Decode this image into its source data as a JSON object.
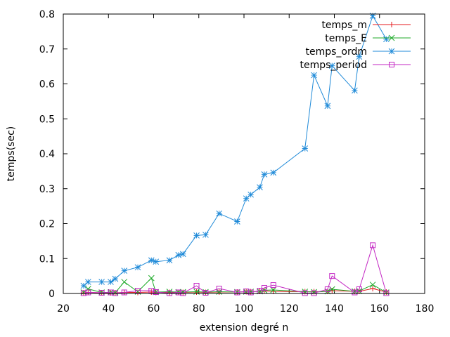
{
  "chart_data": {
    "type": "line",
    "title": "",
    "xlabel": "extension degré n",
    "ylabel": "temps(sec)",
    "xlim": [
      20,
      180
    ],
    "ylim": [
      0,
      0.8
    ],
    "xticks": [
      20,
      40,
      60,
      80,
      100,
      120,
      140,
      160,
      180
    ],
    "yticks": [
      0,
      0.1,
      0.2,
      0.3,
      0.4,
      0.5,
      0.6,
      0.7,
      0.8
    ],
    "xtick_labels": [
      "20",
      "40",
      "60",
      "80",
      "100",
      "120",
      "140",
      "160",
      "180"
    ],
    "ytick_labels": [
      "0",
      "0.1",
      "0.2",
      "0.3",
      "0.4",
      "0.5",
      "0.6",
      "0.7",
      "0.8"
    ],
    "grid": false,
    "legend_position": "top-right",
    "x": [
      29,
      31,
      37,
      41,
      43,
      47,
      53,
      59,
      61,
      67,
      71,
      73,
      79,
      83,
      89,
      97,
      101,
      103,
      107,
      109,
      113,
      127,
      131,
      137,
      139,
      149,
      151,
      157,
      163
    ],
    "series": [
      {
        "name": "temps_m",
        "color": "#e41a1c",
        "marker": "plus",
        "values": [
          0.002,
          0.003,
          0.002,
          0.002,
          0.002,
          0.003,
          0.003,
          0.004,
          0.003,
          0.003,
          0.003,
          0.003,
          0.004,
          0.003,
          0.004,
          0.004,
          0.005,
          0.005,
          0.006,
          0.007,
          0.006,
          0.005,
          0.005,
          0.006,
          0.008,
          0.006,
          0.006,
          0.014,
          0.004
        ]
      },
      {
        "name": "temps_E",
        "color": "#1faa2a",
        "marker": "cross",
        "values": [
          0.003,
          0.013,
          0.003,
          0.003,
          0.002,
          0.033,
          0.005,
          0.044,
          0.004,
          0.005,
          0.004,
          0.004,
          0.005,
          0.004,
          0.005,
          0.004,
          0.005,
          0.005,
          0.006,
          0.009,
          0.01,
          0.005,
          0.004,
          0.006,
          0.012,
          0.006,
          0.007,
          0.025,
          0.003
        ]
      },
      {
        "name": "temps_ordm",
        "color": "#1f8ad8",
        "marker": "star",
        "values": [
          0.022,
          0.033,
          0.033,
          0.033,
          0.042,
          0.065,
          0.075,
          0.095,
          0.091,
          0.095,
          0.11,
          0.113,
          0.166,
          0.168,
          0.229,
          0.206,
          0.272,
          0.283,
          0.304,
          0.341,
          0.346,
          0.415,
          0.625,
          0.537,
          0.652,
          0.581,
          0.678,
          0.795,
          0.728
        ]
      },
      {
        "name": "temps_period",
        "color": "#c327c3",
        "marker": "square",
        "values": [
          0.001,
          0.003,
          0.002,
          0.003,
          0.001,
          0.003,
          0.008,
          0.008,
          0.004,
          0.001,
          0.003,
          0.001,
          0.022,
          0.002,
          0.014,
          0.003,
          0.006,
          0.003,
          0.008,
          0.016,
          0.024,
          0.001,
          0.001,
          0.012,
          0.05,
          0.003,
          0.012,
          0.138,
          0.001
        ]
      }
    ]
  }
}
